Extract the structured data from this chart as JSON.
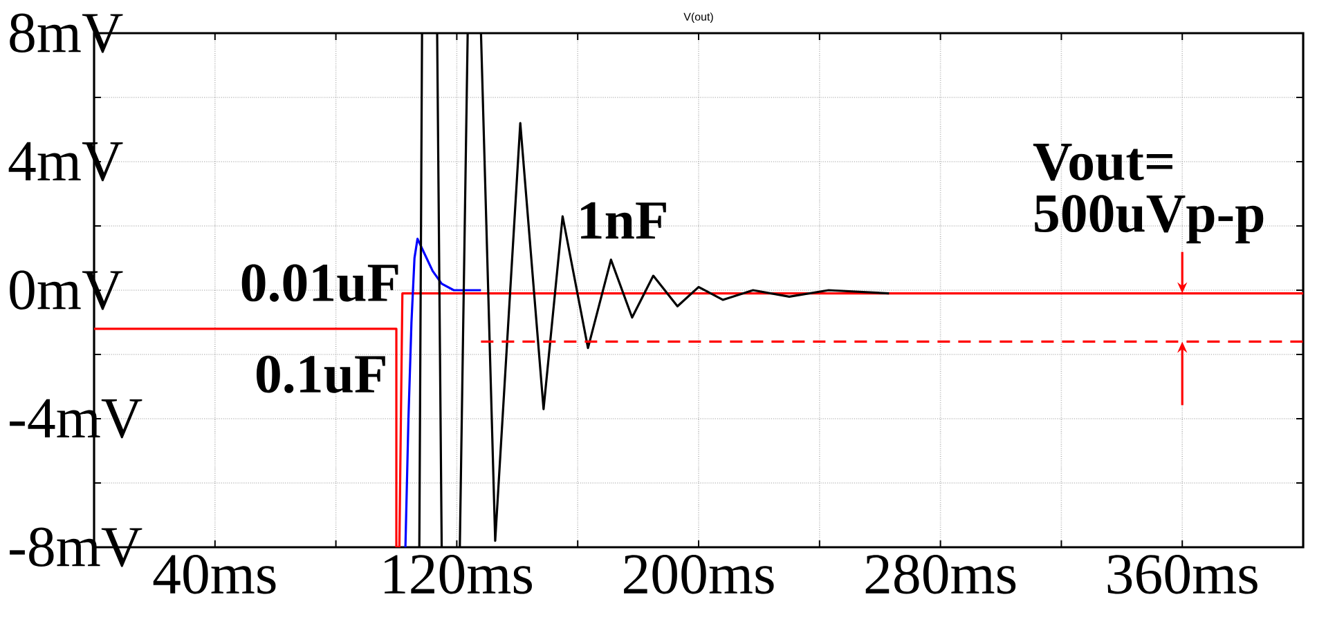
{
  "chart_data": {
    "type": "line",
    "title": "V(out)",
    "xlim": [
      0,
      400
    ],
    "xticks": [
      {
        "value": 40,
        "label": "40ms"
      },
      {
        "value": 80,
        "label": null
      },
      {
        "value": 120,
        "label": "120ms"
      },
      {
        "value": 160,
        "label": null
      },
      {
        "value": 200,
        "label": "200ms"
      },
      {
        "value": 240,
        "label": null
      },
      {
        "value": 280,
        "label": "280ms"
      },
      {
        "value": 320,
        "label": null
      },
      {
        "value": 360,
        "label": "360ms"
      }
    ],
    "ylim": [
      -8,
      8
    ],
    "yticks": [
      {
        "value": -8,
        "label": "-8mV"
      },
      {
        "value": -6,
        "label": null
      },
      {
        "value": -4,
        "label": "-4mV"
      },
      {
        "value": -2,
        "label": null
      },
      {
        "value": 0,
        "label": "0mV"
      },
      {
        "value": 2,
        "label": null
      },
      {
        "value": 4,
        "label": "4mV"
      },
      {
        "value": 6,
        "label": null
      },
      {
        "value": 8,
        "label": "8mV"
      }
    ],
    "grid": true,
    "marker": "none",
    "series": [
      {
        "name": "0.1uF",
        "color": "#ff0000",
        "line_style": "solid",
        "x": [
          0,
          100,
          100,
          101,
          102,
          400
        ],
        "values": [
          -1.2,
          -1.2,
          -8,
          -8,
          -0.1,
          -0.1
        ]
      },
      {
        "name": "0.01uF",
        "color": "#0000ff",
        "line_style": "solid",
        "x": [
          103,
          104,
          105,
          106,
          107,
          109,
          112,
          115,
          119,
          128
        ],
        "values": [
          -8,
          -4,
          -1,
          1,
          1.6,
          1.2,
          0.6,
          0.2,
          0,
          0
        ]
      },
      {
        "name": "1nF",
        "color": "#000000",
        "line_style": "solid",
        "x": [
          107.6,
          108.5,
          111,
          113.5,
          115,
          118,
          121,
          123.6,
          126,
          128,
          132.7,
          141,
          148.7,
          155,
          163.4,
          171,
          178,
          185,
          193,
          200,
          208,
          218,
          230,
          243,
          263
        ],
        "values": [
          -8,
          8,
          null,
          8,
          -8,
          null,
          -8,
          8,
          null,
          8,
          -7.8,
          5.2,
          -3.7,
          2.3,
          -1.8,
          0.95,
          -0.85,
          0.45,
          -0.5,
          0.1,
          -0.3,
          0,
          -0.2,
          0,
          -0.1
        ]
      },
      {
        "color": "#ff0000",
        "line_style": "dashed",
        "x": [
          128,
          400
        ],
        "values": [
          -1.6,
          -1.6
        ]
      }
    ],
    "annotations": [
      "Vout=",
      {
        "text": "500uVp-p",
        "x": 360,
        "y": -0.1
      }
    ]
  }
}
